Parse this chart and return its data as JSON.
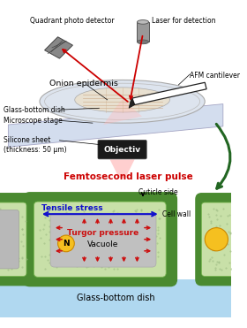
{
  "fig_width": 2.8,
  "fig_height": 3.71,
  "dpi": 100,
  "bg_color": "#ffffff",
  "top": {
    "quadrant_photo": "Quadrant photo detector",
    "laser_detection": "Laser for detection",
    "afm_cantilever": "AFM cantilever",
    "onion_epidermis": "Onion epidermis",
    "glass_bottom_dish": "Glass-bottom dish",
    "microscope_stage": "Microscope stage",
    "silicone_sheet": "Silicone sheet\n(thickness: 50 μm)",
    "objectiv": "Objectiv",
    "femtosecond": "Femtosecond laser pulse",
    "stage_fill": "#ccd8ec",
    "dish_fill": "#dde4ee",
    "dish_edge": "#aaaaaa",
    "inner_fill": "#e8e0d0",
    "obj_fill": "#1a1a1a",
    "obj_text": "#ffffff",
    "beam_fill": "#ffbbbb",
    "laser_red": "#cc0000",
    "green_arrow": "#226622",
    "femto_color": "#cc0000",
    "cant_fill": "#ffffff",
    "cant_edge": "#222222",
    "det_fill": "#888888",
    "laser_src_fill": "#999999"
  },
  "bottom": {
    "tensile_stress": "Tensile stress",
    "cell_wall": "Cell wall",
    "turgor_pressure": "Turgor pressure",
    "vacuole": "Vacuole",
    "nucleus": "N",
    "cuticle_side": "Cuticle side",
    "glass_bottom": "Glass-bottom dish",
    "glass_fill": "#b0d8f0",
    "wall_dark": "#4a8a30",
    "wall_light": "#78b850",
    "cyto_fill": "#c8e0a8",
    "vac_fill": "#c0c0c0",
    "nuc_fill": "#f5c020",
    "partial_fill": "#b8b8b8",
    "blue_arrow": "#1010cc",
    "red_arrow": "#cc1010",
    "black": "#000000"
  }
}
